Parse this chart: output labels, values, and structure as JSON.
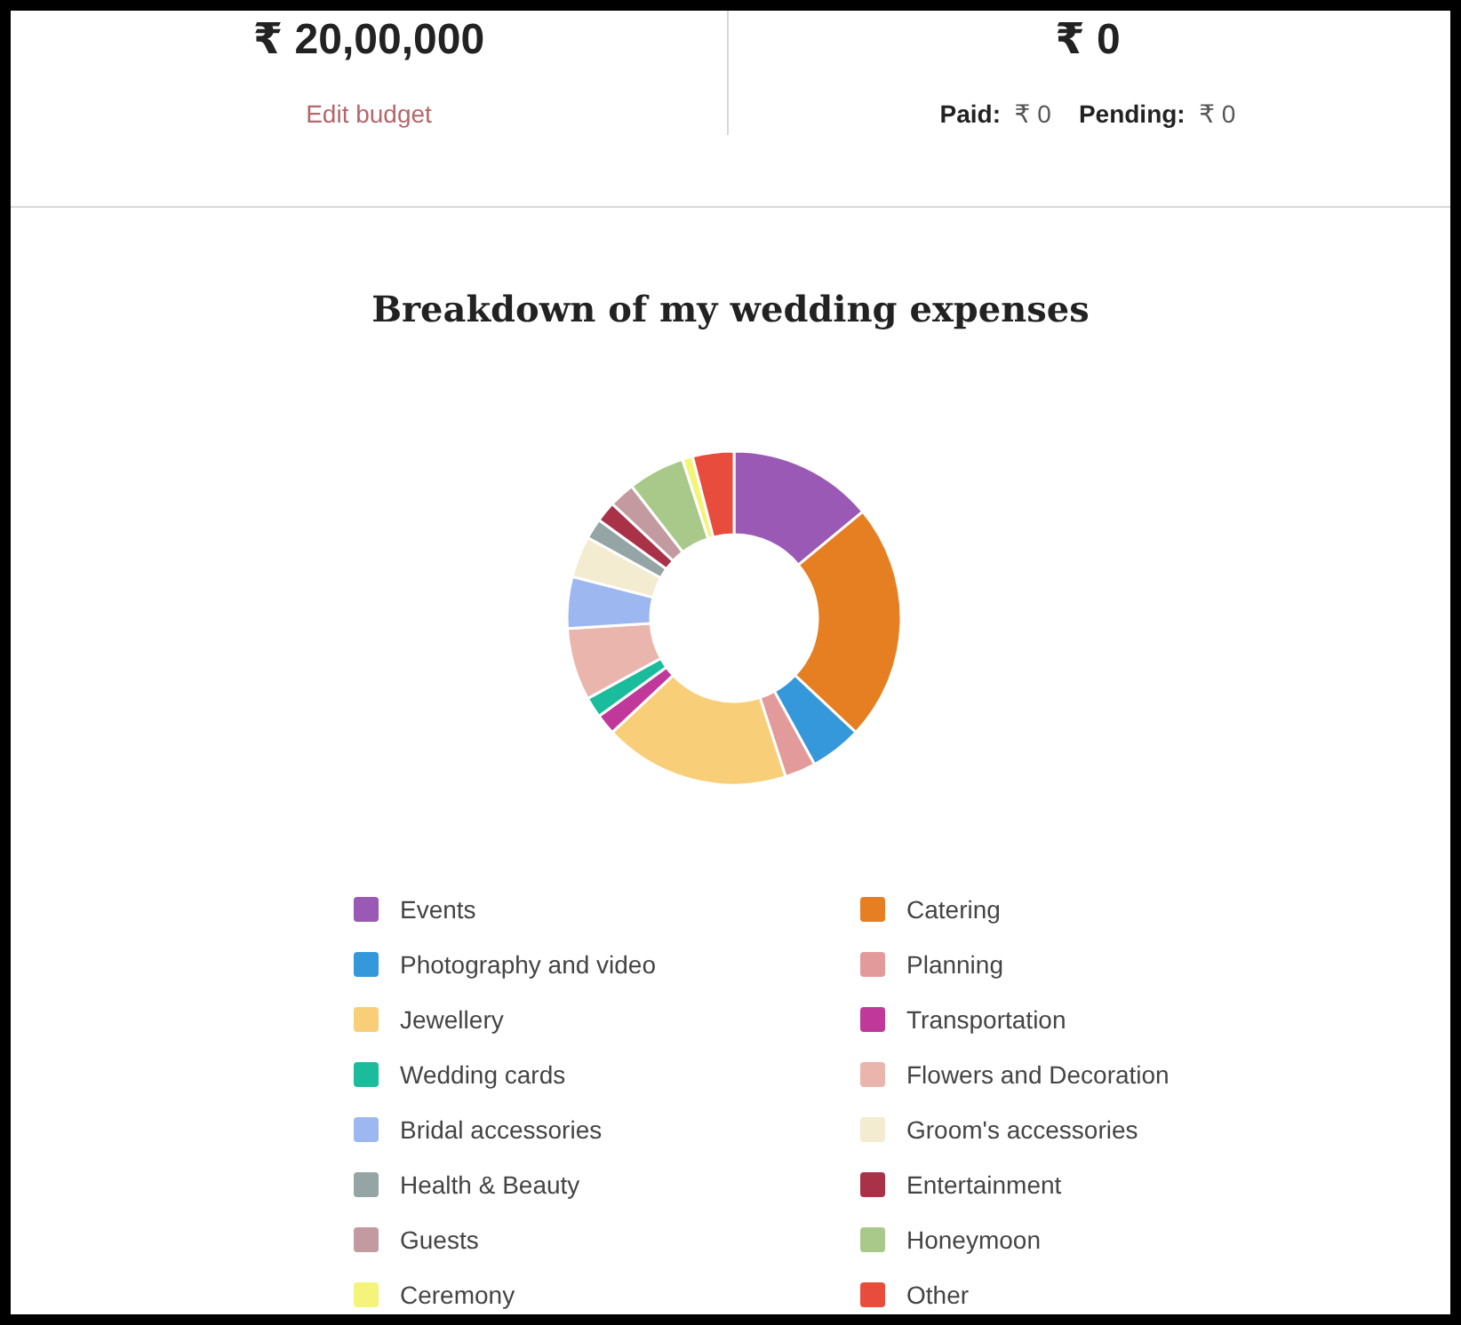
{
  "chart_data": {
    "type": "donut",
    "title": "Breakdown of my wedding expenses",
    "annotations": [
      "₹ 20,00,000",
      "Edit budget",
      "₹ 0",
      "Paid:",
      "₹ 0",
      "Pending:",
      "₹ 0"
    ],
    "categories": [
      "Events",
      "Catering",
      "Photography and video",
      "Planning",
      "Jewellery",
      "Transportation",
      "Wedding cards",
      "Flowers and Decoration",
      "Bridal accessories",
      "Groom's accessories",
      "Health & Beauty",
      "Entertainment",
      "Guests",
      "Honeymoon",
      "Ceremony",
      "Other"
    ],
    "values": [
      14,
      23,
      5,
      3,
      18,
      2,
      2,
      7,
      5,
      4,
      2,
      2,
      2.5,
      5.5,
      1,
      4
    ],
    "colors": [
      "#9b59b6",
      "#e67e22",
      "#3498db",
      "#e39a9a",
      "#f8cf78",
      "#c0399a",
      "#1abc9c",
      "#eab5ad",
      "#9db8f0",
      "#f3ecd0",
      "#95a5a6",
      "#a93248",
      "#c39aa0",
      "#a8c98a",
      "#f4f47a",
      "#e74c3c"
    ],
    "legend": "bottom"
  }
}
